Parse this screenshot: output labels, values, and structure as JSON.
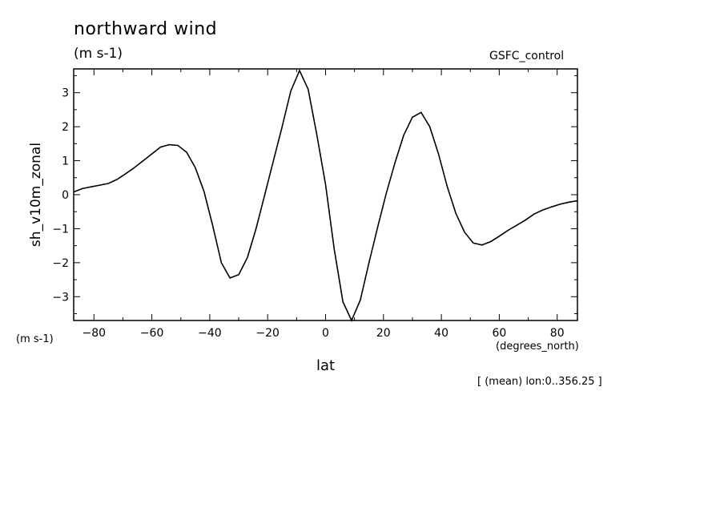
{
  "header": {
    "title": "northward wind",
    "units": "(m s-1)",
    "dataset": "GSFC_control"
  },
  "axes": {
    "ylabel": "sh_v10m_zonal",
    "yunits": "(m s-1)",
    "xlabel": "lat",
    "xunits": "(degrees_north)"
  },
  "annotation": "[ (mean) lon:0..356.25 ]",
  "chart_data": {
    "type": "line",
    "title": "northward wind",
    "subtitle": "(m s-1)",
    "xlabel": "lat",
    "ylabel": "sh_v10m_zonal",
    "xlim": [
      -87,
      87
    ],
    "ylim": [
      -3.7,
      3.7
    ],
    "xticks": [
      -80,
      -60,
      -40,
      -20,
      0,
      20,
      40,
      60,
      80
    ],
    "yticks": [
      -3,
      -2,
      -1,
      0,
      1,
      2,
      3
    ],
    "grid": false,
    "series": [
      {
        "x": [
          -87,
          -84,
          -81,
          -78,
          -75,
          -72,
          -69,
          -66,
          -63,
          -60,
          -57,
          -54,
          -51,
          -48,
          -45,
          -42,
          -39,
          -36,
          -33,
          -30,
          -27,
          -24,
          -21,
          -18,
          -15,
          -12,
          -9,
          -6,
          -3,
          0,
          3,
          6,
          9,
          12,
          15,
          18,
          21,
          24,
          27,
          30,
          33,
          36,
          39,
          42,
          45,
          48,
          51,
          54,
          57,
          60,
          63,
          66,
          69,
          72,
          75,
          78,
          81,
          84,
          87
        ],
        "y": [
          0.08,
          0.18,
          0.23,
          0.28,
          0.33,
          0.45,
          0.62,
          0.8,
          1.0,
          1.2,
          1.4,
          1.47,
          1.45,
          1.25,
          0.8,
          0.1,
          -0.9,
          -2.0,
          -2.45,
          -2.35,
          -1.85,
          -1.0,
          0.0,
          1.0,
          2.0,
          3.05,
          3.65,
          3.1,
          1.75,
          0.3,
          -1.6,
          -3.15,
          -3.7,
          -3.1,
          -2.0,
          -0.95,
          0.05,
          0.95,
          1.75,
          2.28,
          2.42,
          2.0,
          1.2,
          0.25,
          -0.55,
          -1.1,
          -1.42,
          -1.48,
          -1.38,
          -1.22,
          -1.05,
          -0.9,
          -0.75,
          -0.57,
          -0.45,
          -0.36,
          -0.28,
          -0.22,
          -0.18
        ]
      }
    ]
  }
}
